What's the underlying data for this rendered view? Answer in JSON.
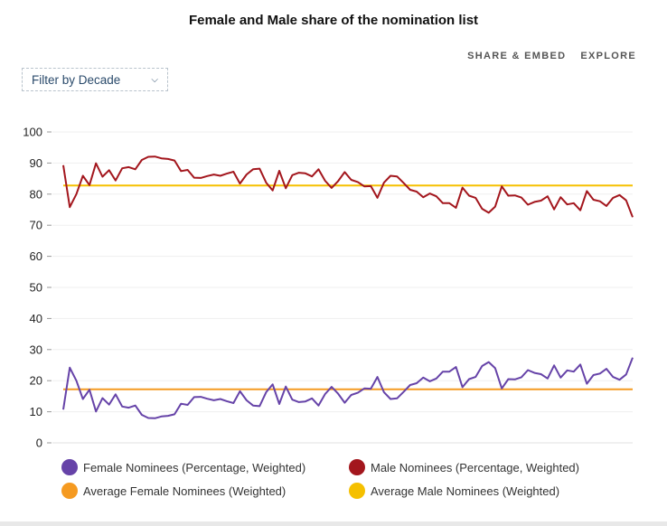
{
  "title": "Female and Male share of the nomination list",
  "links": {
    "share": "SHARE & EMBED",
    "explore": "EXPLORE"
  },
  "filter": {
    "label": "Filter by Decade"
  },
  "legend": [
    {
      "label": "Female Nominees (Percentage, Weighted)",
      "color": "#6643a8"
    },
    {
      "label": "Male Nominees (Percentage, Weighted)",
      "color": "#a3161d"
    },
    {
      "label": "Average Female Nominees (Weighted)",
      "color": "#f59a21"
    },
    {
      "label": "Average Male Nominees (Weighted)",
      "color": "#f5c000"
    }
  ],
  "chart_data": {
    "type": "line",
    "title": "Female and Male share of the nomination list",
    "xlabel": "",
    "ylabel": "",
    "ylim": [
      0,
      100
    ],
    "yticks": [
      0,
      10,
      20,
      30,
      40,
      50,
      60,
      70,
      80,
      90,
      100
    ],
    "grid": true,
    "legend_position": "bottom",
    "series": [
      {
        "name": "Female Nominees (Percentage, Weighted)",
        "color": "#6643a8",
        "values": [
          10.7,
          24.2,
          20,
          14.1,
          17.1,
          10.1,
          14.4,
          12.3,
          15.6,
          11.7,
          11.3,
          12,
          9,
          8,
          7.9,
          8.5,
          8.7,
          9.2,
          12.6,
          12.2,
          14.7,
          14.8,
          14.2,
          13.7,
          14.1,
          13.4,
          12.8,
          16.6,
          13.7,
          12,
          11.8,
          16.3,
          18.8,
          12.5,
          18.1,
          13.9,
          13.1,
          13.3,
          14.3,
          12,
          15.7,
          18,
          15.8,
          12.9,
          15.4,
          16.1,
          17.5,
          17.4,
          21.2,
          16.3,
          14.1,
          14.3,
          16.4,
          18.6,
          19.2,
          21,
          19.8,
          20.7,
          22.9,
          22.9,
          24.4,
          17.9,
          20.5,
          21.2,
          24.7,
          26,
          24,
          17.5,
          20.5,
          20.4,
          21.1,
          23.4,
          22.5,
          22.1,
          20.7,
          24.9,
          21,
          23.3,
          22.9,
          25.2,
          19,
          21.8,
          22.3,
          23.8,
          21.2,
          20.3,
          22,
          27.4
        ]
      },
      {
        "name": "Male Nominees (Percentage, Weighted)",
        "color": "#a3161d",
        "values": [
          89.3,
          75.8,
          80,
          85.9,
          82.9,
          89.9,
          85.6,
          87.7,
          84.4,
          88.3,
          88.7,
          88,
          91,
          92,
          92.1,
          91.5,
          91.3,
          90.8,
          87.4,
          87.8,
          85.3,
          85.2,
          85.8,
          86.3,
          85.9,
          86.6,
          87.2,
          83.4,
          86.3,
          88,
          88.2,
          83.7,
          81.2,
          87.5,
          81.9,
          86.1,
          86.9,
          86.7,
          85.7,
          88,
          84.3,
          82,
          84.2,
          87.1,
          84.6,
          83.9,
          82.5,
          82.6,
          78.8,
          83.7,
          85.9,
          85.7,
          83.6,
          81.4,
          80.8,
          79,
          80.2,
          79.3,
          77.1,
          77.1,
          75.6,
          82.1,
          79.5,
          78.8,
          75.3,
          74,
          76,
          82.5,
          79.5,
          79.6,
          78.9,
          76.6,
          77.5,
          77.9,
          79.3,
          75.1,
          79,
          76.7,
          77.1,
          74.8,
          81,
          78.2,
          77.7,
          76.2,
          78.8,
          79.7,
          78,
          72.6
        ]
      },
      {
        "name": "Average Female Nominees (Weighted)",
        "color": "#f59a21",
        "values": [
          17.2
        ]
      },
      {
        "name": "Average Male Nominees (Weighted)",
        "color": "#f5c000",
        "values": [
          82.8
        ]
      }
    ]
  }
}
